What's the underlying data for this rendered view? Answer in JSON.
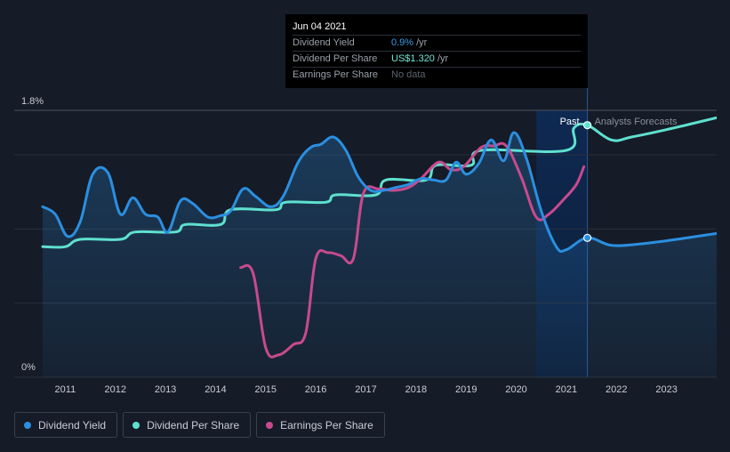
{
  "tooltip": {
    "date": "Jun 04 2021",
    "rows": [
      {
        "label": "Dividend Yield",
        "value": "0.9%",
        "unit": "/yr"
      },
      {
        "label": "Dividend Per Share",
        "value": "US$1.320",
        "unit": "/yr"
      },
      {
        "label": "Earnings Per Share",
        "value": "No data",
        "unit": ""
      }
    ]
  },
  "legend": [
    {
      "label": "Dividend Yield",
      "color": "#2b8fe0"
    },
    {
      "label": "Dividend Per Share",
      "color": "#5fe0cf"
    },
    {
      "label": "Earnings Per Share",
      "color": "#c84a8e"
    }
  ],
  "chart_data": {
    "type": "line",
    "title": "",
    "xlabel": "",
    "ylabel": "",
    "ylim": [
      0,
      1.8
    ],
    "xlim": [
      2010.4,
      2024.0
    ],
    "y_tick_labels": [
      {
        "value": 1.8,
        "label": "1.8%"
      },
      {
        "value": 0,
        "label": "0%"
      }
    ],
    "x_ticks": [
      {
        "value": 2011,
        "label": "2011"
      },
      {
        "value": 2012,
        "label": "2012"
      },
      {
        "value": 2013,
        "label": "2013"
      },
      {
        "value": 2014,
        "label": "2014"
      },
      {
        "value": 2015,
        "label": "2015"
      },
      {
        "value": 2016,
        "label": "2016"
      },
      {
        "value": 2017,
        "label": "2017"
      },
      {
        "value": 2018,
        "label": "2018"
      },
      {
        "value": 2019,
        "label": "2019"
      },
      {
        "value": 2020,
        "label": "2020"
      },
      {
        "value": 2021,
        "label": "2021"
      },
      {
        "value": 2022,
        "label": "2022"
      },
      {
        "value": 2023,
        "label": "2023"
      }
    ],
    "past_label": "Past",
    "forecast_label": "Analysts Forecasts",
    "highlight_start": 2020.4,
    "divider_x": 2021.42,
    "series": [
      {
        "name": "Dividend Yield",
        "color": "#2b8fe0",
        "fill": true,
        "points": [
          [
            2010.55,
            1.15
          ],
          [
            2010.8,
            1.1
          ],
          [
            2011.05,
            0.95
          ],
          [
            2011.3,
            1.05
          ],
          [
            2011.55,
            1.37
          ],
          [
            2011.85,
            1.38
          ],
          [
            2012.1,
            1.1
          ],
          [
            2012.35,
            1.21
          ],
          [
            2012.6,
            1.1
          ],
          [
            2012.85,
            1.08
          ],
          [
            2013.05,
            0.98
          ],
          [
            2013.3,
            1.19
          ],
          [
            2013.55,
            1.17
          ],
          [
            2013.85,
            1.08
          ],
          [
            2014.1,
            1.09
          ],
          [
            2014.3,
            1.12
          ],
          [
            2014.55,
            1.27
          ],
          [
            2014.8,
            1.22
          ],
          [
            2015.1,
            1.15
          ],
          [
            2015.35,
            1.22
          ],
          [
            2015.65,
            1.45
          ],
          [
            2015.9,
            1.55
          ],
          [
            2016.1,
            1.57
          ],
          [
            2016.35,
            1.62
          ],
          [
            2016.6,
            1.53
          ],
          [
            2016.85,
            1.35
          ],
          [
            2017.1,
            1.26
          ],
          [
            2017.35,
            1.26
          ],
          [
            2017.6,
            1.28
          ],
          [
            2017.85,
            1.3
          ],
          [
            2018.1,
            1.34
          ],
          [
            2018.35,
            1.33
          ],
          [
            2018.6,
            1.33
          ],
          [
            2018.8,
            1.45
          ],
          [
            2019.0,
            1.37
          ],
          [
            2019.25,
            1.44
          ],
          [
            2019.5,
            1.6
          ],
          [
            2019.75,
            1.46
          ],
          [
            2019.95,
            1.65
          ],
          [
            2020.2,
            1.48
          ],
          [
            2020.5,
            1.12
          ],
          [
            2020.8,
            0.88
          ],
          [
            2021.0,
            0.86
          ],
          [
            2021.42,
            0.94
          ],
          [
            2021.9,
            0.89
          ],
          [
            2022.5,
            0.9
          ],
          [
            2023.2,
            0.93
          ],
          [
            2024.0,
            0.97
          ]
        ]
      },
      {
        "name": "Dividend Per Share",
        "color": "#5fe0cf",
        "fill": false,
        "points": [
          [
            2010.55,
            0.88
          ],
          [
            2011.0,
            0.88
          ],
          [
            2011.3,
            0.93
          ],
          [
            2012.1,
            0.93
          ],
          [
            2012.4,
            0.98
          ],
          [
            2013.2,
            0.98
          ],
          [
            2013.4,
            1.03
          ],
          [
            2014.1,
            1.03
          ],
          [
            2014.3,
            1.13
          ],
          [
            2015.2,
            1.13
          ],
          [
            2015.4,
            1.18
          ],
          [
            2016.2,
            1.18
          ],
          [
            2016.4,
            1.23
          ],
          [
            2017.2,
            1.23
          ],
          [
            2017.4,
            1.33
          ],
          [
            2018.2,
            1.33
          ],
          [
            2018.4,
            1.43
          ],
          [
            2019.1,
            1.43
          ],
          [
            2019.3,
            1.53
          ],
          [
            2021.0,
            1.53
          ],
          [
            2021.15,
            1.68
          ],
          [
            2021.42,
            1.7
          ],
          [
            2021.9,
            1.6
          ],
          [
            2022.3,
            1.62
          ],
          [
            2023.0,
            1.67
          ],
          [
            2024.0,
            1.75
          ]
        ]
      },
      {
        "name": "Earnings Per Share",
        "color": "#c84a8e",
        "fill": false,
        "points": [
          [
            2014.5,
            0.74
          ],
          [
            2014.75,
            0.7
          ],
          [
            2015.0,
            0.2
          ],
          [
            2015.25,
            0.15
          ],
          [
            2015.55,
            0.22
          ],
          [
            2015.8,
            0.3
          ],
          [
            2016.0,
            0.8
          ],
          [
            2016.25,
            0.84
          ],
          [
            2016.5,
            0.82
          ],
          [
            2016.75,
            0.8
          ],
          [
            2016.95,
            1.24
          ],
          [
            2017.25,
            1.27
          ],
          [
            2017.55,
            1.26
          ],
          [
            2017.85,
            1.28
          ],
          [
            2018.1,
            1.34
          ],
          [
            2018.45,
            1.45
          ],
          [
            2018.7,
            1.4
          ],
          [
            2018.95,
            1.42
          ],
          [
            2019.3,
            1.55
          ],
          [
            2019.55,
            1.56
          ],
          [
            2019.8,
            1.56
          ],
          [
            2020.1,
            1.35
          ],
          [
            2020.4,
            1.08
          ],
          [
            2020.65,
            1.1
          ],
          [
            2020.95,
            1.2
          ],
          [
            2021.2,
            1.3
          ],
          [
            2021.35,
            1.42
          ]
        ]
      }
    ],
    "markers": [
      {
        "series": "Dividend Per Share",
        "x": 2021.42,
        "y": 1.7
      },
      {
        "series": "Dividend Yield",
        "x": 2021.42,
        "y": 0.94
      }
    ]
  }
}
